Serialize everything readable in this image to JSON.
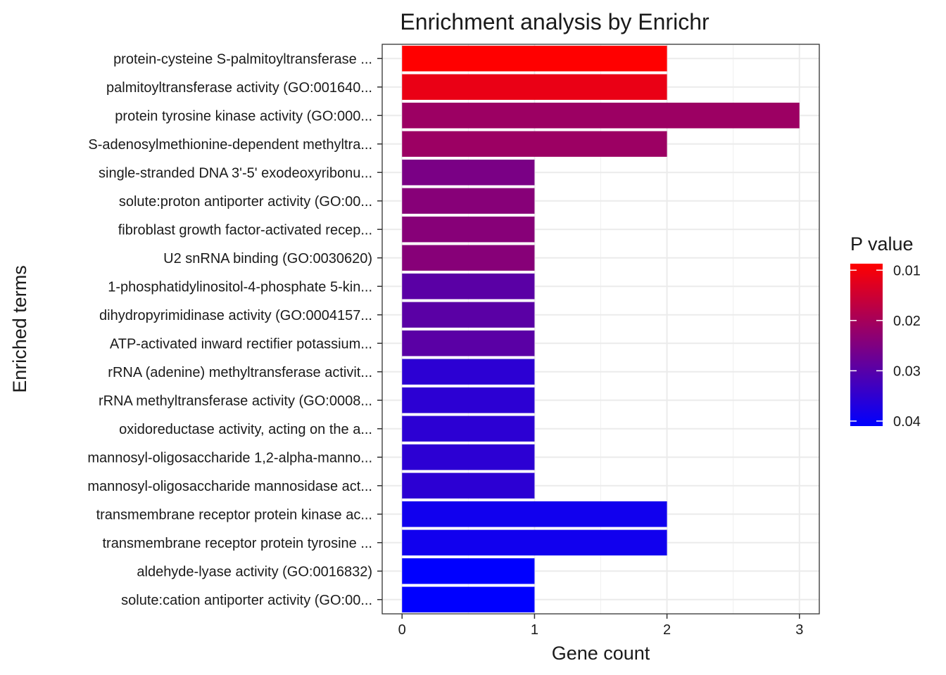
{
  "chart_data": {
    "type": "bar",
    "orientation": "horizontal",
    "title": "Enrichment analysis by Enrichr",
    "xlabel": "Gene count",
    "ylabel": "Enriched terms",
    "xlim": [
      -0.15,
      3.15
    ],
    "x_ticks": [
      0,
      1,
      2,
      3
    ],
    "x_tick_labels": [
      "0",
      "1",
      "2",
      "3"
    ],
    "grid": true,
    "categories": [
      "protein-cysteine S-palmitoyltransferase ...",
      "palmitoyltransferase activity (GO:001640...",
      "protein tyrosine kinase activity (GO:000...",
      "S-adenosylmethionine-dependent methyltra...",
      "single-stranded DNA 3'-5' exodeoxyribonu...",
      "solute:proton antiporter activity (GO:00...",
      "fibroblast growth factor-activated recep...",
      "U2 snRNA binding (GO:0030620)",
      "1-phosphatidylinositol-4-phosphate 5-kin...",
      "dihydropyrimidinase activity (GO:0004157...",
      "ATP-activated inward rectifier potassium...",
      "rRNA (adenine) methyltransferase activit...",
      "rRNA methyltransferase activity (GO:0008...",
      "oxidoreductase activity, acting on the a...",
      "mannosyl-oligosaccharide 1,2-alpha-manno...",
      "mannosyl-oligosaccharide mannosidase act...",
      "transmembrane receptor protein kinase ac...",
      "transmembrane receptor protein tyrosine ...",
      "aldehyde-lyase activity (GO:0016832)",
      "solute:cation antiporter activity (GO:00..."
    ],
    "values": [
      2,
      2,
      3,
      2,
      1,
      1,
      1,
      1,
      1,
      1,
      1,
      1,
      1,
      1,
      1,
      1,
      2,
      2,
      1,
      1
    ],
    "p_values": [
      0.0087,
      0.0113,
      0.0213,
      0.0213,
      0.0256,
      0.0239,
      0.0239,
      0.0239,
      0.0296,
      0.0296,
      0.0296,
      0.0354,
      0.0354,
      0.0354,
      0.0354,
      0.0354,
      0.0388,
      0.0388,
      0.041,
      0.041
    ],
    "legend": {
      "title": "P value",
      "position": "right",
      "range": [
        0.0087,
        0.041
      ],
      "ticks": [
        0.01,
        0.02,
        0.03,
        0.04
      ],
      "tick_labels": [
        "0.01",
        "0.02",
        "0.03",
        "0.04"
      ],
      "low_color": "#ff0000",
      "high_color": "#0000ff"
    }
  }
}
